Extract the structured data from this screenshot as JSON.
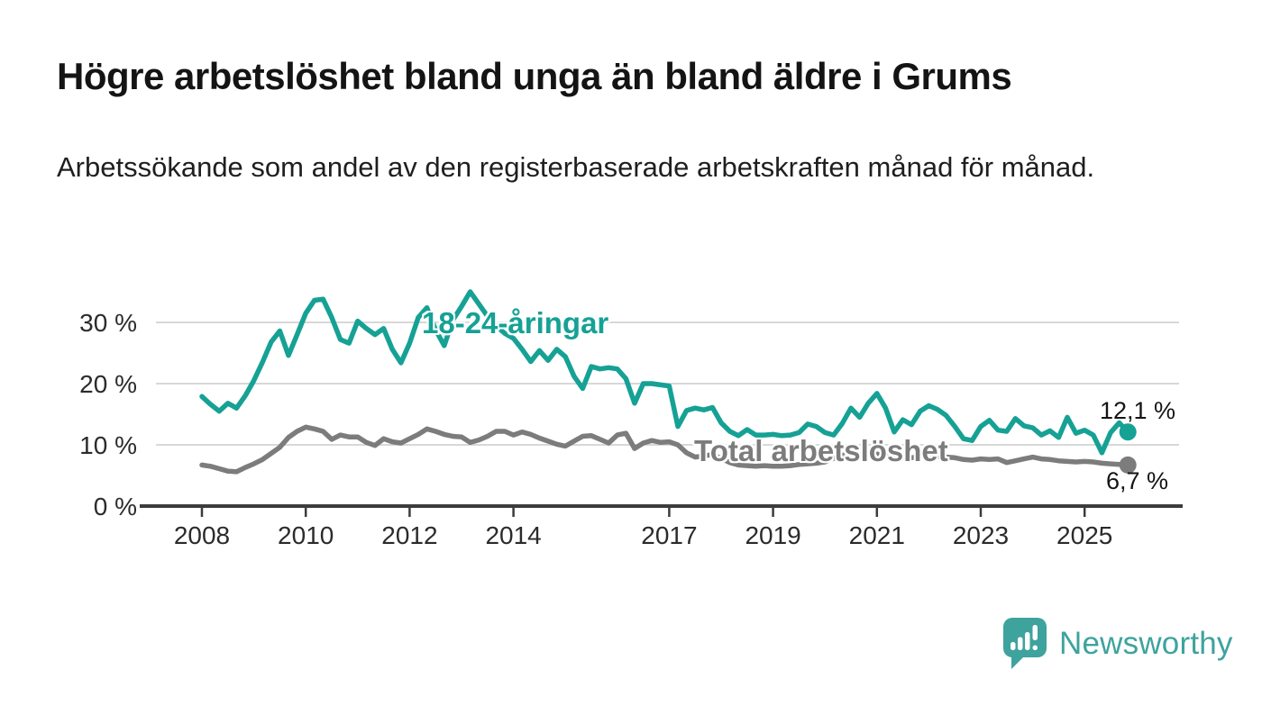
{
  "title": "Högre arbetslöshet bland unga än bland äldre i Grums",
  "subtitle": "Arbetssökande som andel av den registerbaserade arbetskraften månad för månad.",
  "branding": {
    "name": "Newsworthy",
    "icon": "newsworthy-speech-bubble-barchart-icon",
    "color": "#3ea39d"
  },
  "colors": {
    "young": "#16a195",
    "total": "#7c7c7c",
    "grid": "#d8d8d8",
    "axis": "#3c3c3c",
    "tick_text": "#2b2b2b",
    "text": "#141414"
  },
  "chart_data": {
    "type": "line",
    "title": "Högre arbetslöshet bland unga än bland äldre i Grums",
    "subtitle": "Arbetssökande som andel av den registerbaserade arbetskraften månad för månad.",
    "x_unit": "year (monthly samples, every 2nd month)",
    "x_start": 2008.0,
    "x_step": 0.1667,
    "ylim": [
      0,
      36.5
    ],
    "xlim": [
      2006.8,
      2026.9
    ],
    "grid": "horizontal",
    "y_ticks": [
      {
        "v": 0,
        "label": "0 %"
      },
      {
        "v": 10,
        "label": "10 %"
      },
      {
        "v": 20,
        "label": "20 %"
      },
      {
        "v": 30,
        "label": "30 %"
      }
    ],
    "x_ticks": [
      {
        "v": 2008,
        "label": "2008"
      },
      {
        "v": 2010,
        "label": "2010"
      },
      {
        "v": 2012,
        "label": "2012"
      },
      {
        "v": 2014,
        "label": "2014"
      },
      {
        "v": 2017,
        "label": "2017"
      },
      {
        "v": 2019,
        "label": "2019"
      },
      {
        "v": 2021,
        "label": "2021"
      },
      {
        "v": 2023,
        "label": "2023"
      },
      {
        "v": 2025,
        "label": "2025"
      }
    ],
    "series": [
      {
        "name": "18-24-åringar",
        "inline_label": "18-24-åringar",
        "end_label": "12,1 %",
        "end_value": 12.1,
        "color": "#16a195",
        "values": [
          17.9,
          16.6,
          15.5,
          16.8,
          16.0,
          18.0,
          20.5,
          23.5,
          26.8,
          28.6,
          24.6,
          28.0,
          31.5,
          33.6,
          33.8,
          30.8,
          27.2,
          26.6,
          30.2,
          29.0,
          28.0,
          29.0,
          25.6,
          23.4,
          26.6,
          30.8,
          32.4,
          28.8,
          26.2,
          30.4,
          32.6,
          35.0,
          33.0,
          31.0,
          29.4,
          28.2,
          27.4,
          25.6,
          23.6,
          25.4,
          23.8,
          25.6,
          24.4,
          21.2,
          19.2,
          22.8,
          22.4,
          22.6,
          22.4,
          20.8,
          16.8,
          20.0,
          20.0,
          19.8,
          19.6,
          13.0,
          15.6,
          16.0,
          15.7,
          16.1,
          13.6,
          12.2,
          11.5,
          12.5,
          11.6,
          11.6,
          11.7,
          11.5,
          11.6,
          12.0,
          13.4,
          13.0,
          12.0,
          11.6,
          13.5,
          16.0,
          14.5,
          16.8,
          18.4,
          16.0,
          12.1,
          14.1,
          13.3,
          15.5,
          16.4,
          15.8,
          14.8,
          13.0,
          11.0,
          10.7,
          13.0,
          14.0,
          12.4,
          12.2,
          14.3,
          13.1,
          12.8,
          11.6,
          12.3,
          11.2,
          14.5,
          11.9,
          12.4,
          11.6,
          8.7,
          12.0,
          13.6,
          12.1
        ]
      },
      {
        "name": "Total arbetslöshet",
        "inline_label": "Total arbetslöshet",
        "end_label": "6,7 %",
        "end_value": 6.7,
        "color": "#7c7c7c",
        "values": [
          6.7,
          6.5,
          6.1,
          5.7,
          5.6,
          6.3,
          6.9,
          7.6,
          8.6,
          9.6,
          11.2,
          12.2,
          12.9,
          12.6,
          12.2,
          10.9,
          11.6,
          11.3,
          11.3,
          10.4,
          9.9,
          11.0,
          10.5,
          10.3,
          11.0,
          11.7,
          12.6,
          12.2,
          11.7,
          11.4,
          11.3,
          10.4,
          10.8,
          11.4,
          12.2,
          12.2,
          11.6,
          12.1,
          11.7,
          11.1,
          10.6,
          10.1,
          9.8,
          10.6,
          11.4,
          11.5,
          10.9,
          10.3,
          11.6,
          11.9,
          9.4,
          10.3,
          10.7,
          10.4,
          10.5,
          10.0,
          8.7,
          8.0,
          8.2,
          8.4,
          7.8,
          7.1,
          6.7,
          6.6,
          6.5,
          6.6,
          6.5,
          6.5,
          6.6,
          6.8,
          6.9,
          7.0,
          7.2,
          7.8,
          8.3,
          8.5,
          8.4,
          8.3,
          8.5,
          8.3,
          8.1,
          8.0,
          7.9,
          8.1,
          8.2,
          8.1,
          8.0,
          7.9,
          7.6,
          7.5,
          7.7,
          7.6,
          7.7,
          7.1,
          7.4,
          7.7,
          8.0,
          7.7,
          7.6,
          7.4,
          7.3,
          7.2,
          7.3,
          7.2,
          7.0,
          6.9,
          6.8,
          6.7
        ]
      }
    ]
  }
}
